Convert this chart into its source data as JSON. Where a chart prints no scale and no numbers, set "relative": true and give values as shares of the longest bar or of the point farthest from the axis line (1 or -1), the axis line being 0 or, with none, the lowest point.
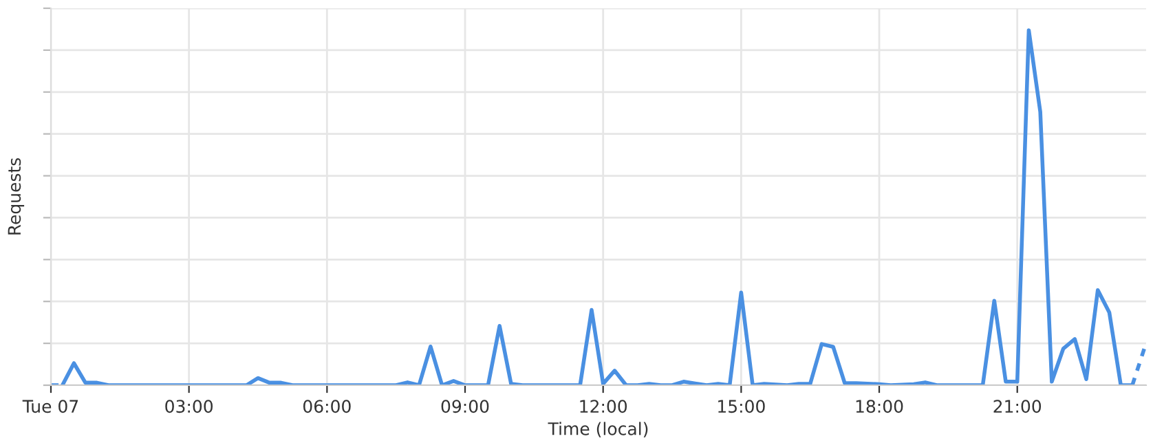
{
  "chart_data": {
    "type": "line",
    "xlabel": "Time (local)",
    "ylabel": "Requests",
    "relative": true,
    "grid": true,
    "tick_labels": "x",
    "xlim": [
      0,
      23.8
    ],
    "xticks": [
      {
        "value": 0,
        "label": "Tue 07"
      },
      {
        "value": 3,
        "label": "03:00"
      },
      {
        "value": 6,
        "label": "06:00"
      },
      {
        "value": 9,
        "label": "09:00"
      },
      {
        "value": 12,
        "label": "12:00"
      },
      {
        "value": 15,
        "label": "15:00"
      },
      {
        "value": 18,
        "label": "18:00"
      },
      {
        "value": 21,
        "label": "21:00"
      }
    ],
    "series": [
      {
        "color": "#4a90e2",
        "line_style": "dashed",
        "x": [
          0,
          0.25
        ],
        "values": [
          0,
          0
        ]
      },
      {
        "color": "#4a90e2",
        "line_style": "solid",
        "x": [
          0.25,
          0.5,
          0.75,
          1.0,
          1.25,
          3.0,
          4.25,
          4.5,
          4.75,
          5.0,
          5.25,
          7.5,
          7.75,
          8.0,
          8.25,
          8.5,
          8.75,
          9.0,
          9.5,
          9.75,
          10.0,
          10.25,
          11.5,
          11.75,
          12.0,
          12.25,
          12.5,
          12.75,
          13.0,
          13.25,
          13.5,
          13.75,
          14.0,
          14.25,
          14.5,
          14.75,
          15.0,
          15.25,
          15.5,
          16.0,
          16.25,
          16.5,
          16.75,
          17.0,
          17.25,
          17.5,
          18.0,
          18.25,
          18.75,
          19.0,
          19.25,
          20.25,
          20.5,
          20.75,
          21.0,
          21.25,
          21.5,
          21.75,
          22.0,
          22.25,
          22.5,
          22.75,
          23.0,
          23.25,
          23.5
        ],
        "values": [
          0,
          0.062,
          0.007,
          0.007,
          0,
          0,
          0,
          0.02,
          0.007,
          0.007,
          0,
          0,
          0.008,
          0,
          0.109,
          0,
          0.012,
          0,
          0,
          0.167,
          0.004,
          0,
          0,
          0.212,
          0.004,
          0.041,
          0,
          0,
          0.004,
          0,
          0,
          0.01,
          0.005,
          0,
          0.004,
          0,
          0.261,
          0,
          0.004,
          0,
          0.004,
          0.004,
          0.116,
          0.108,
          0.006,
          0.006,
          0.003,
          0,
          0.003,
          0.008,
          0,
          0,
          0.238,
          0.01,
          0.01,
          1.0,
          0.77,
          0.01,
          0.103,
          0.13,
          0.017,
          0.268,
          0.205,
          0,
          0
        ]
      },
      {
        "color": "#4a90e2",
        "line_style": "dashed",
        "x": [
          23.5,
          23.77
        ],
        "values": [
          0,
          0.107
        ]
      }
    ]
  }
}
